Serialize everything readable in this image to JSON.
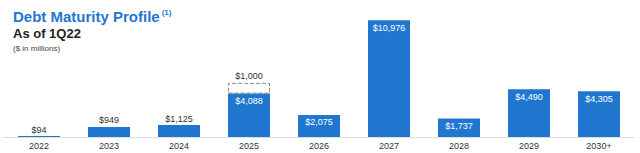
{
  "chart_data": {
    "type": "bar",
    "title": "Debt Maturity Profile",
    "annotations": [
      "(1)"
    ],
    "subtitle": "As of 1Q22",
    "y_label": "($ in millions)",
    "categories": [
      "2022",
      "2023",
      "2024",
      "2025",
      "2026",
      "2027",
      "2028",
      "2029",
      "2030+"
    ],
    "series": [
      {
        "color": "#1f77d0",
        "values": [
          94,
          949,
          1125,
          4088,
          2075,
          10976,
          1737,
          4490,
          4305
        ],
        "value_labels": [
          "$94",
          "$949",
          "$1,125",
          "$4,088",
          "$2,075",
          "$10,976",
          "$1,737",
          "$4,490",
          "$4,305"
        ]
      },
      {
        "color": "#8c8c8c",
        "line_style": "dashed",
        "values": [
          null,
          null,
          null,
          1000,
          null,
          null,
          null,
          null,
          null
        ],
        "value_labels": [
          null,
          null,
          null,
          "$1,000",
          null,
          null,
          null,
          null,
          null
        ]
      }
    ],
    "stacked": true,
    "data_labels": true,
    "ylim": [
      0,
      11000
    ],
    "grid": false,
    "tick_labels": "x"
  }
}
